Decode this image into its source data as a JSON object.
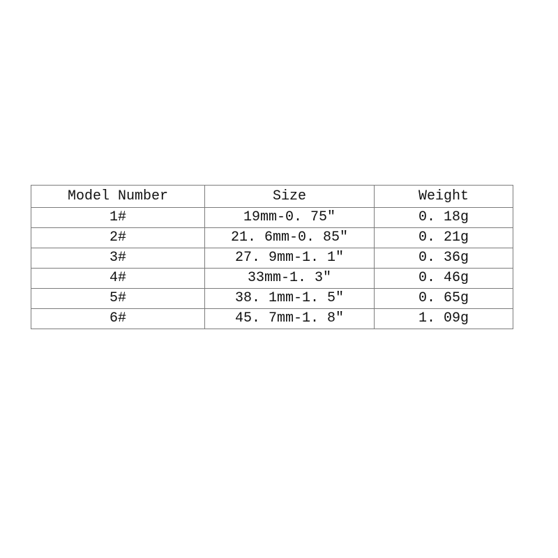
{
  "chart_data": {
    "type": "table",
    "columns": [
      "Model Number",
      "Size",
      "Weight"
    ],
    "rows": [
      [
        "1#",
        "19mm-0. 75\"",
        "0. 18g"
      ],
      [
        "2#",
        "21. 6mm-0. 85\"",
        "0. 21g"
      ],
      [
        "3#",
        "27. 9mm-1. 1\"",
        "0. 36g"
      ],
      [
        "4#",
        "33mm-1. 3\"",
        "0. 46g"
      ],
      [
        "5#",
        "38. 1mm-1. 5\"",
        "0. 65g"
      ],
      [
        "6#",
        "45. 7mm-1. 8\"",
        "1. 09g"
      ]
    ],
    "title": "",
    "legend": "none",
    "grid": "full-borders"
  },
  "colors": {
    "background": "#ffffff",
    "border": "#7b7b7b",
    "text": "#111111"
  }
}
